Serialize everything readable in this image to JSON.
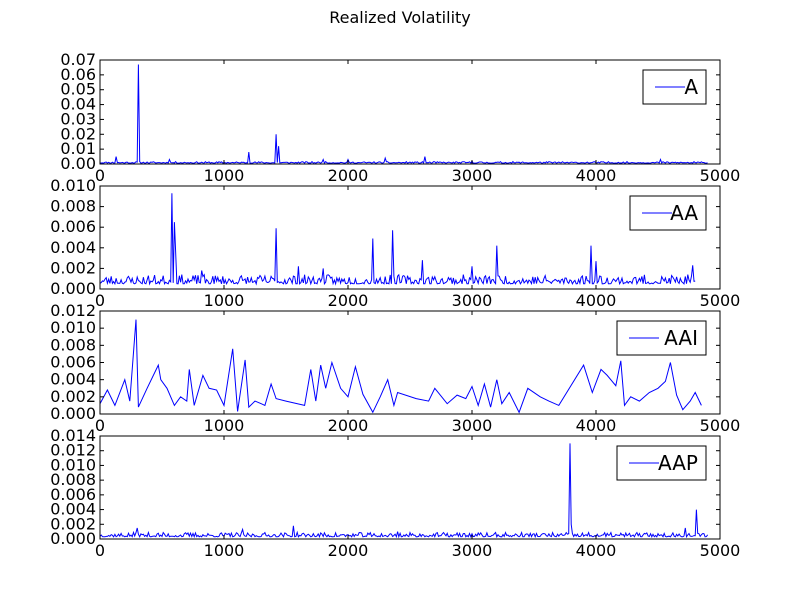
{
  "figure": {
    "title": "Realized Volatility"
  },
  "chart_data": [
    {
      "type": "line",
      "series": [
        {
          "name": "A",
          "color": "#0000ff"
        }
      ],
      "xlim": [
        0,
        5000
      ],
      "ylim": [
        0,
        0.07
      ],
      "xticks": [
        0,
        1000,
        2000,
        3000,
        4000,
        5000
      ],
      "xtick_labels": [
        "0",
        "1000",
        "2000",
        "3000",
        "4000",
        "5000"
      ],
      "yticks": [
        0,
        0.01,
        0.02,
        0.03,
        0.04,
        0.05,
        0.06,
        0.07
      ],
      "ytick_labels": [
        "0.00",
        "0.01",
        "0.02",
        "0.03",
        "0.04",
        "0.05",
        "0.06",
        "0.07"
      ],
      "legend": "upper right",
      "grid": false,
      "baseline": {
        "x_max": 4900,
        "base": 0.0006,
        "noise": 0.001,
        "seed": 11
      },
      "spikes": [
        [
          130,
          0.005
        ],
        [
          310,
          0.067
        ],
        [
          560,
          0.003
        ],
        [
          1200,
          0.008
        ],
        [
          1420,
          0.02
        ],
        [
          1440,
          0.012
        ],
        [
          1800,
          0.003
        ],
        [
          2000,
          0.003
        ],
        [
          2300,
          0.004
        ],
        [
          2620,
          0.005
        ],
        [
          3000,
          0.002
        ],
        [
          4520,
          0.003
        ]
      ]
    },
    {
      "type": "line",
      "series": [
        {
          "name": "AA",
          "color": "#0000ff"
        }
      ],
      "xlim": [
        0,
        5000
      ],
      "ylim": [
        0,
        0.01
      ],
      "xticks": [
        0,
        1000,
        2000,
        3000,
        4000,
        5000
      ],
      "xtick_labels": [
        "0",
        "1000",
        "2000",
        "3000",
        "4000",
        "5000"
      ],
      "yticks": [
        0,
        0.002,
        0.004,
        0.006,
        0.008,
        0.01
      ],
      "ytick_labels": [
        "0.000",
        "0.002",
        "0.004",
        "0.006",
        "0.008",
        "0.010"
      ],
      "legend": "upper right",
      "grid": false,
      "baseline": {
        "x_max": 4800,
        "base": 0.0005,
        "noise": 0.0009,
        "seed": 23
      },
      "spikes": [
        [
          580,
          0.0093
        ],
        [
          600,
          0.0065
        ],
        [
          610,
          0.0037
        ],
        [
          820,
          0.0018
        ],
        [
          1420,
          0.0059
        ],
        [
          1600,
          0.0022
        ],
        [
          1800,
          0.002
        ],
        [
          2200,
          0.0049
        ],
        [
          2360,
          0.0057
        ],
        [
          2600,
          0.0028
        ],
        [
          3000,
          0.0022
        ],
        [
          3200,
          0.0042
        ],
        [
          3960,
          0.0042
        ],
        [
          4000,
          0.0027
        ],
        [
          4780,
          0.0023
        ]
      ]
    },
    {
      "type": "line",
      "series": [
        {
          "name": "AAI",
          "color": "#0000ff"
        }
      ],
      "xlim": [
        0,
        5000
      ],
      "ylim": [
        0,
        0.012
      ],
      "xticks": [
        0,
        1000,
        2000,
        3000,
        4000,
        5000
      ],
      "xtick_labels": [
        "0",
        "1000",
        "2000",
        "3000",
        "4000",
        "5000"
      ],
      "yticks": [
        0,
        0.002,
        0.004,
        0.006,
        0.008,
        0.01,
        0.012
      ],
      "ytick_labels": [
        "0.000",
        "0.002",
        "0.004",
        "0.006",
        "0.008",
        "0.010",
        "0.012"
      ],
      "legend": "upper right",
      "grid": false,
      "points": [
        [
          0,
          0.0012
        ],
        [
          60,
          0.0028
        ],
        [
          120,
          0.001
        ],
        [
          200,
          0.004
        ],
        [
          240,
          0.0015
        ],
        [
          290,
          0.011
        ],
        [
          310,
          0.0008
        ],
        [
          380,
          0.003
        ],
        [
          470,
          0.0057
        ],
        [
          490,
          0.004
        ],
        [
          540,
          0.003
        ],
        [
          600,
          0.001
        ],
        [
          650,
          0.002
        ],
        [
          700,
          0.0015
        ],
        [
          720,
          0.0052
        ],
        [
          760,
          0.001
        ],
        [
          830,
          0.0045
        ],
        [
          880,
          0.003
        ],
        [
          940,
          0.0028
        ],
        [
          1000,
          0.001
        ],
        [
          1070,
          0.0076
        ],
        [
          1110,
          0.0003
        ],
        [
          1170,
          0.0063
        ],
        [
          1200,
          0.0008
        ],
        [
          1250,
          0.0015
        ],
        [
          1300,
          0.0012
        ],
        [
          1330,
          0.001
        ],
        [
          1380,
          0.0035
        ],
        [
          1420,
          0.0018
        ],
        [
          1500,
          0.0015
        ],
        [
          1650,
          0.001
        ],
        [
          1700,
          0.0052
        ],
        [
          1740,
          0.0015
        ],
        [
          1780,
          0.0057
        ],
        [
          1820,
          0.003
        ],
        [
          1870,
          0.006
        ],
        [
          1940,
          0.003
        ],
        [
          2000,
          0.002
        ],
        [
          2060,
          0.0055
        ],
        [
          2120,
          0.0023
        ],
        [
          2200,
          0.0002
        ],
        [
          2260,
          0.002
        ],
        [
          2320,
          0.004
        ],
        [
          2370,
          0.001
        ],
        [
          2400,
          0.0025
        ],
        [
          2550,
          0.0018
        ],
        [
          2650,
          0.0015
        ],
        [
          2700,
          0.003
        ],
        [
          2800,
          0.0012
        ],
        [
          2880,
          0.0022
        ],
        [
          2950,
          0.0018
        ],
        [
          3000,
          0.0032
        ],
        [
          3050,
          0.001
        ],
        [
          3100,
          0.0035
        ],
        [
          3150,
          0.0008
        ],
        [
          3200,
          0.004
        ],
        [
          3240,
          0.0012
        ],
        [
          3300,
          0.0025
        ],
        [
          3380,
          0.0002
        ],
        [
          3450,
          0.003
        ],
        [
          3550,
          0.002
        ],
        [
          3620,
          0.0015
        ],
        [
          3700,
          0.001
        ],
        [
          3900,
          0.0057
        ],
        [
          3970,
          0.0025
        ],
        [
          4040,
          0.0052
        ],
        [
          4090,
          0.0045
        ],
        [
          4160,
          0.0033
        ],
        [
          4200,
          0.0062
        ],
        [
          4230,
          0.001
        ],
        [
          4280,
          0.002
        ],
        [
          4350,
          0.0015
        ],
        [
          4430,
          0.0025
        ],
        [
          4500,
          0.003
        ],
        [
          4560,
          0.0038
        ],
        [
          4600,
          0.006
        ],
        [
          4650,
          0.0022
        ],
        [
          4700,
          0.0005
        ],
        [
          4760,
          0.0015
        ],
        [
          4800,
          0.0025
        ],
        [
          4850,
          0.001
        ]
      ]
    },
    {
      "type": "line",
      "series": [
        {
          "name": "AAP",
          "color": "#0000ff"
        }
      ],
      "xlim": [
        0,
        5000
      ],
      "ylim": [
        0,
        0.014
      ],
      "xticks": [
        0,
        1000,
        2000,
        3000,
        4000,
        5000
      ],
      "xtick_labels": [
        "0",
        "1000",
        "2000",
        "3000",
        "4000",
        "5000"
      ],
      "yticks": [
        0,
        0.002,
        0.004,
        0.006,
        0.008,
        0.01,
        0.012,
        0.014
      ],
      "ytick_labels": [
        "0.000",
        "0.002",
        "0.004",
        "0.006",
        "0.008",
        "0.010",
        "0.012",
        "0.014"
      ],
      "legend": "upper right",
      "grid": false,
      "baseline": {
        "x_max": 4900,
        "base": 0.0003,
        "noise": 0.0006,
        "seed": 37
      },
      "spikes": [
        [
          300,
          0.0015
        ],
        [
          1150,
          0.0013
        ],
        [
          1560,
          0.0018
        ],
        [
          2400,
          0.001
        ],
        [
          3790,
          0.013
        ],
        [
          3800,
          0.002
        ],
        [
          4720,
          0.0015
        ],
        [
          4810,
          0.004
        ]
      ]
    }
  ]
}
